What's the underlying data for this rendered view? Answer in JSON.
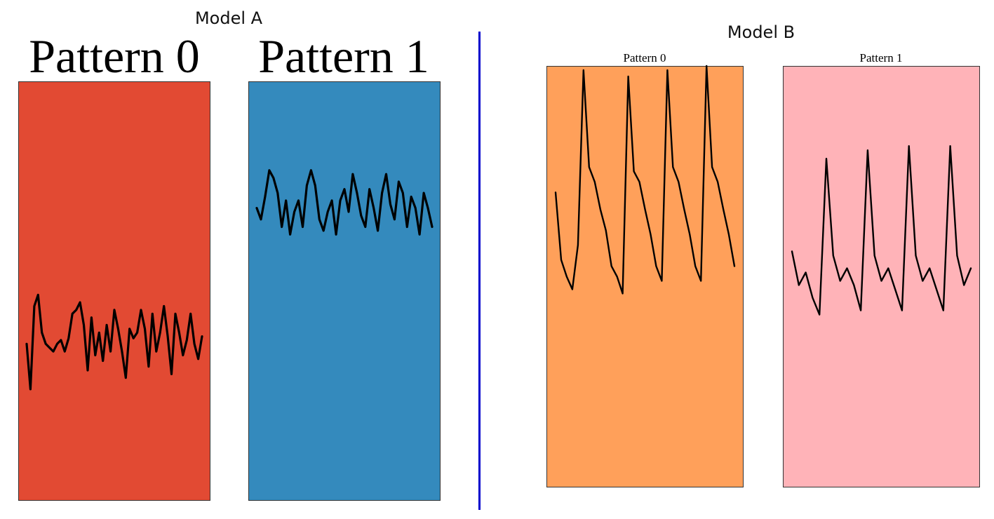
{
  "colors": {
    "divider": "#0000cc",
    "line": "#000000",
    "frame": "#333333"
  },
  "chart_data": [
    {
      "type": "line",
      "group": "Model A",
      "title": "Pattern 0",
      "background": "#e24a33",
      "ylim": [
        -1,
        1
      ],
      "values": [
        -0.28,
        -0.52,
        -0.08,
        -0.02,
        -0.22,
        -0.28,
        -0.3,
        -0.32,
        -0.28,
        -0.26,
        -0.32,
        -0.25,
        -0.12,
        -0.1,
        -0.06,
        -0.18,
        -0.42,
        -0.14,
        -0.34,
        -0.22,
        -0.37,
        -0.18,
        -0.32,
        -0.1,
        -0.2,
        -0.32,
        -0.46,
        -0.2,
        -0.25,
        -0.22,
        -0.1,
        -0.2,
        -0.4,
        -0.12,
        -0.32,
        -0.22,
        -0.08,
        -0.24,
        -0.44,
        -0.12,
        -0.22,
        -0.34,
        -0.26,
        -0.12,
        -0.28,
        -0.36,
        -0.24
      ]
    },
    {
      "type": "line",
      "group": "Model A",
      "title": "Pattern 1",
      "background": "#348abd",
      "ylim": [
        -1,
        1
      ],
      "values": [
        0.44,
        0.38,
        0.5,
        0.64,
        0.6,
        0.52,
        0.34,
        0.48,
        0.3,
        0.42,
        0.48,
        0.34,
        0.56,
        0.64,
        0.56,
        0.38,
        0.32,
        0.42,
        0.48,
        0.3,
        0.48,
        0.54,
        0.42,
        0.62,
        0.52,
        0.4,
        0.34,
        0.54,
        0.44,
        0.32,
        0.52,
        0.62,
        0.46,
        0.38,
        0.58,
        0.52,
        0.34,
        0.5,
        0.44,
        0.3,
        0.52,
        0.44,
        0.34
      ]
    },
    {
      "type": "line",
      "group": "Model B",
      "title": "Pattern 0",
      "background": "#ffa05a",
      "ylim": [
        -1,
        1
      ],
      "values": [
        0.4,
        0.08,
        0.0,
        -0.06,
        0.15,
        0.98,
        0.52,
        0.45,
        0.32,
        0.22,
        0.05,
        0.0,
        -0.08,
        0.95,
        0.5,
        0.45,
        0.32,
        0.2,
        0.05,
        -0.02,
        0.98,
        0.52,
        0.45,
        0.32,
        0.2,
        0.05,
        -0.02,
        1.0,
        0.52,
        0.45,
        0.32,
        0.2,
        0.05
      ]
    },
    {
      "type": "line",
      "group": "Model B",
      "title": "Pattern 1",
      "background": "#ffb3b8",
      "ylim": [
        -1,
        1
      ],
      "values": [
        0.12,
        -0.04,
        0.02,
        -0.1,
        -0.18,
        0.56,
        0.1,
        -0.02,
        0.04,
        -0.04,
        -0.16,
        0.6,
        0.1,
        -0.02,
        0.04,
        -0.06,
        -0.16,
        0.62,
        0.1,
        -0.02,
        0.04,
        -0.06,
        -0.16,
        0.62,
        0.1,
        -0.04,
        0.04
      ]
    }
  ],
  "titles": {
    "model_a": "Model A",
    "model_b": "Model B",
    "a_p0": "Pattern 0",
    "a_p1": "Pattern 1",
    "b_p0": "Pattern 0",
    "b_p1": "Pattern 1"
  }
}
